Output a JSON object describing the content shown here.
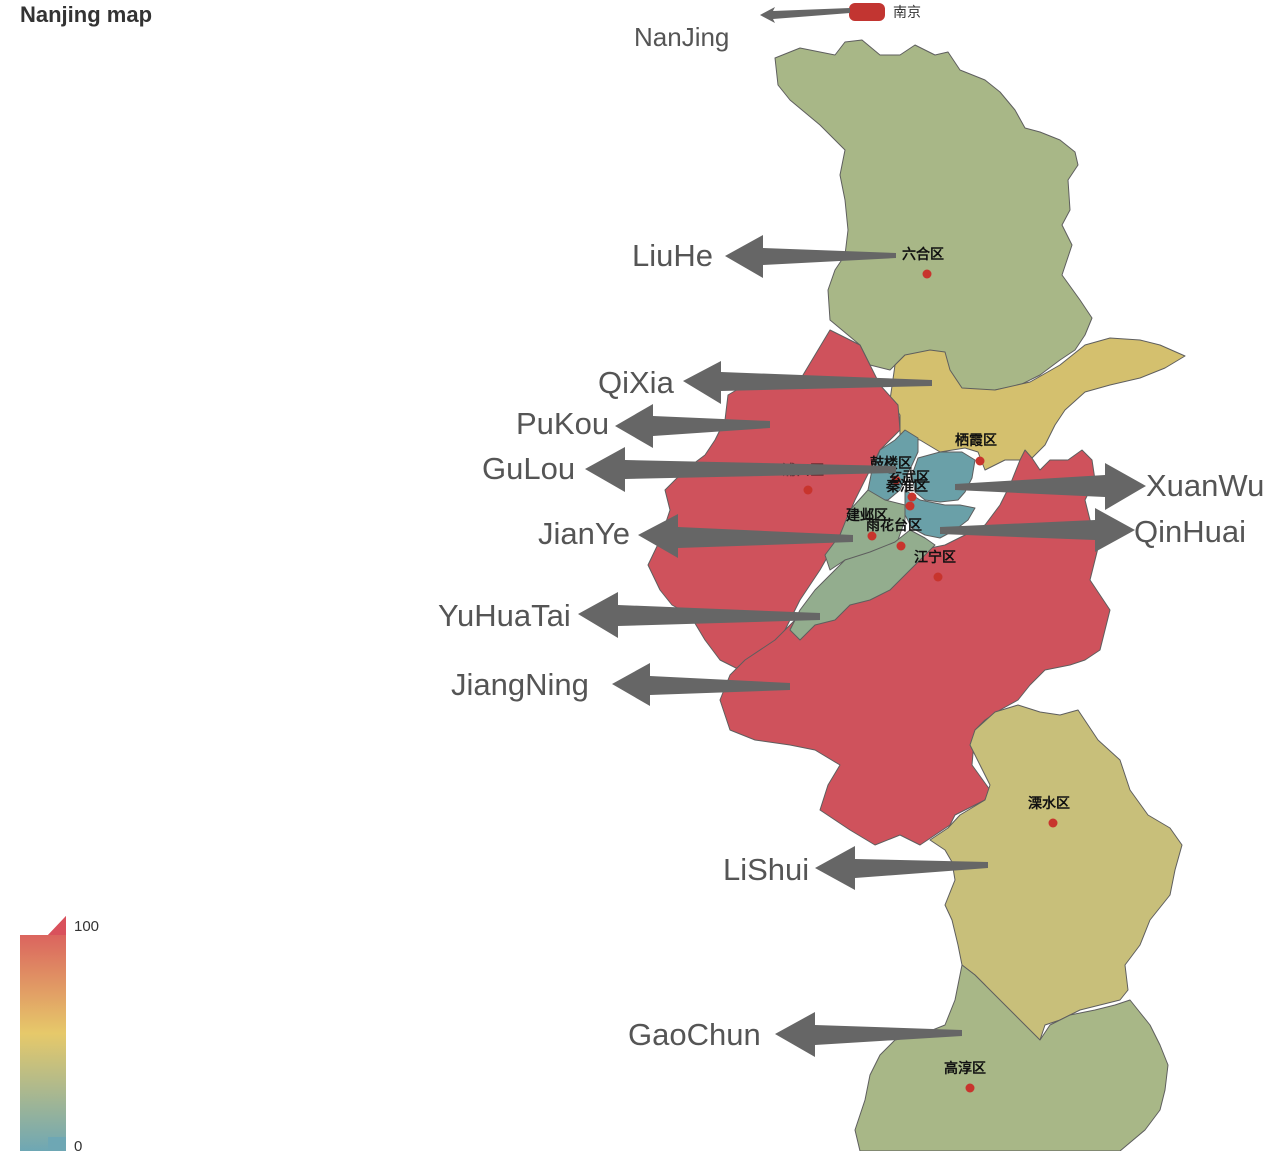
{
  "title": "Nanjing map",
  "legend": {
    "label": "南京",
    "color": "#c23531"
  },
  "visual_map": {
    "max_label": "100",
    "min_label": "0",
    "colors": [
      "#6ea7b4",
      "#e6c96a",
      "#d9515c"
    ]
  },
  "colors": {
    "low": "#6aa0a8",
    "midlow": "#a8b787",
    "mid": "#c8bf7a",
    "yellow": "#d4c06e",
    "high": "#cf525c",
    "point": "#c8342d",
    "arrow": "#666666",
    "border": "#5e5e5e"
  },
  "districts": [
    {
      "cn": "六合区",
      "en": "LiuHe"
    },
    {
      "cn": "栖霞区",
      "en": "QiXia"
    },
    {
      "cn": "浦口区",
      "en": "PuKou"
    },
    {
      "cn": "鼓楼区",
      "en": "GuLou"
    },
    {
      "cn": "玄武区",
      "en": "XuanWu"
    },
    {
      "cn": "秦淮区",
      "en": "QinHuai"
    },
    {
      "cn": "建邺区",
      "en": "JianYe"
    },
    {
      "cn": "雨花台区",
      "en": "YuHuaTai"
    },
    {
      "cn": "江宁区",
      "en": "JiangNing"
    },
    {
      "cn": "溧水区",
      "en": "LiShui"
    },
    {
      "cn": "高淳区",
      "en": "GaoChun"
    }
  ],
  "city_label": "NanJing"
}
